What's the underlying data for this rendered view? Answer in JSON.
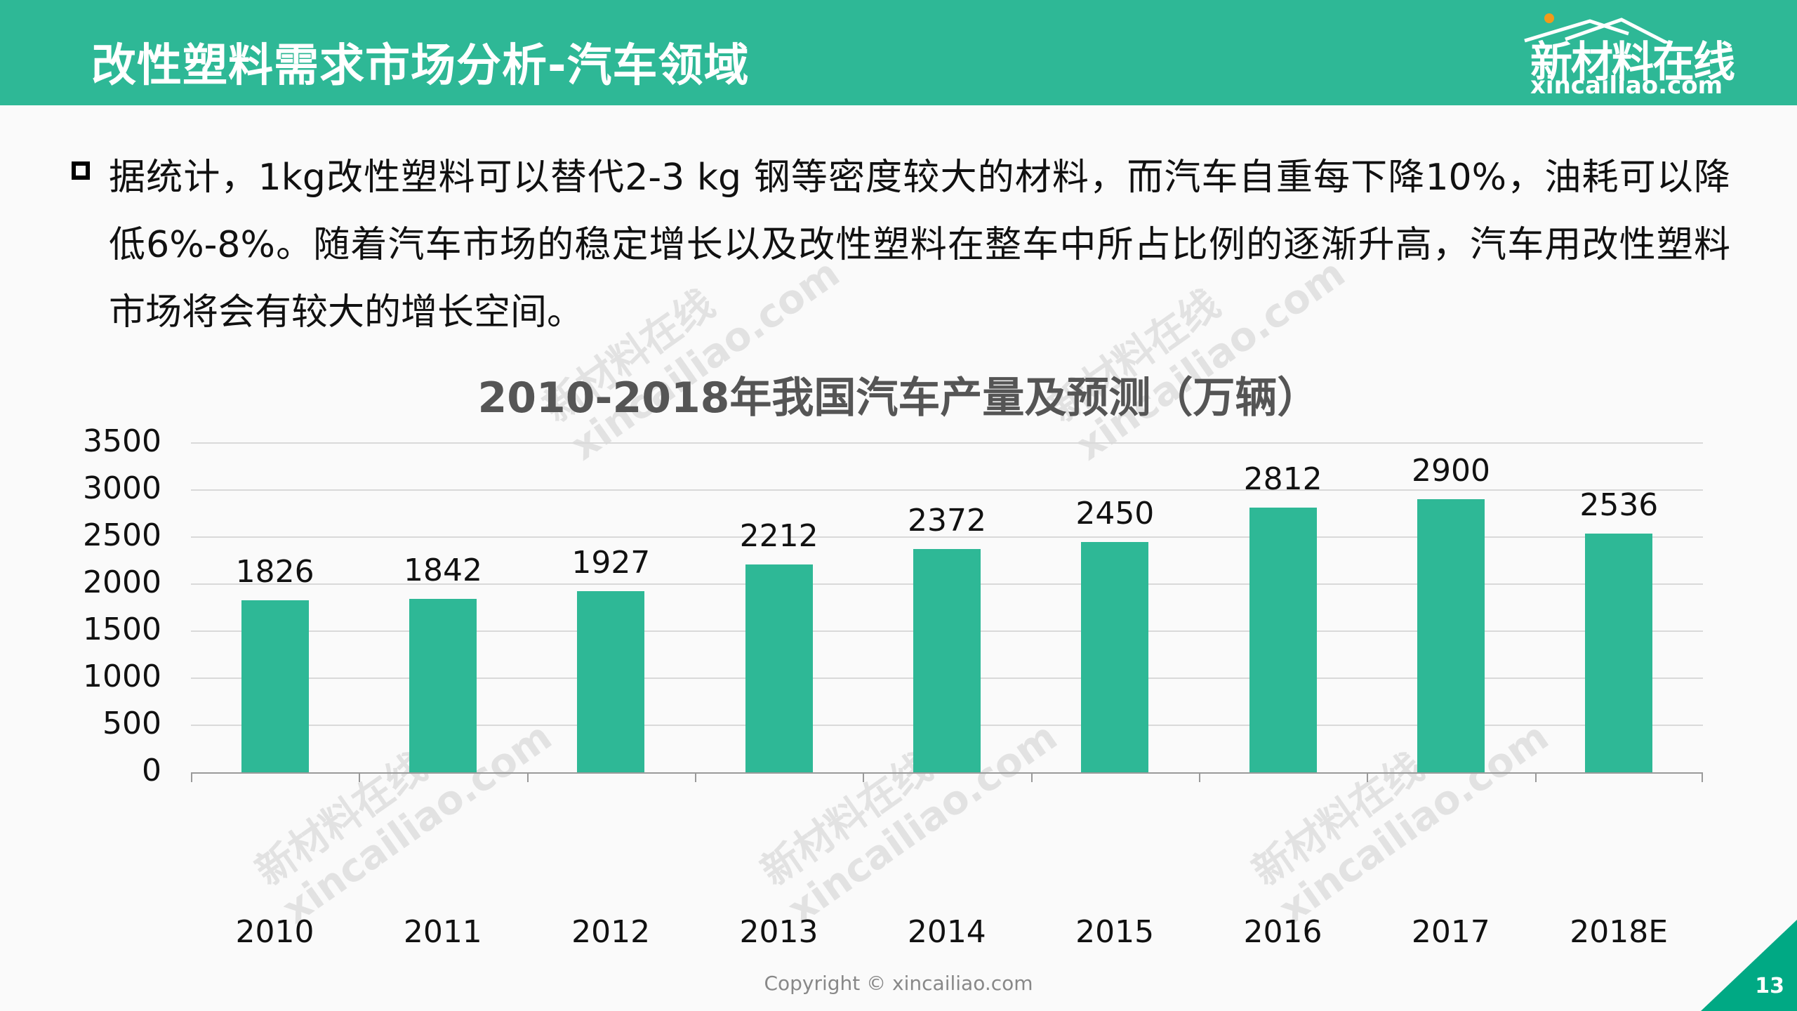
{
  "header": {
    "title": "改性塑料需求市场分析-汽车领域",
    "logo_cn": "新材料在线",
    "logo_en": "xincailiao.com",
    "background_color": "#2eb896"
  },
  "body": {
    "paragraph": "据统计，1kg改性塑料可以替代2-3 kg 钢等密度较大的材料，而汽车自重每下降10%，油耗可以降低6%-8%。随着汽车市场的稳定增长以及改性塑料在整车中所占比例的逐渐升高，汽车用改性塑料市场将会有较大的增长空间。"
  },
  "watermark": {
    "line1": "新材料在线",
    "line2": "xincailiao.com"
  },
  "chart_data": {
    "type": "bar",
    "title": "2010-2018年我国汽车产量及预测（万辆）",
    "xlabel": "",
    "ylabel": "",
    "categories": [
      "2010",
      "2011",
      "2012",
      "2013",
      "2014",
      "2015",
      "2016",
      "2017",
      "2018E"
    ],
    "values": [
      1826,
      1842,
      1927,
      2212,
      2372,
      2450,
      2812,
      2900,
      2536
    ],
    "ylim": [
      0,
      3500
    ],
    "yticks": [
      "0",
      "500",
      "1000",
      "1500",
      "2000",
      "2500",
      "3000",
      "3500"
    ],
    "grid": true,
    "legend": "none",
    "bar_color": "#2eb896",
    "data_labels": true
  },
  "footer": {
    "copyright": "Copyright © xincailiao.com",
    "page_number": "13",
    "accent_color": "#00a984"
  }
}
